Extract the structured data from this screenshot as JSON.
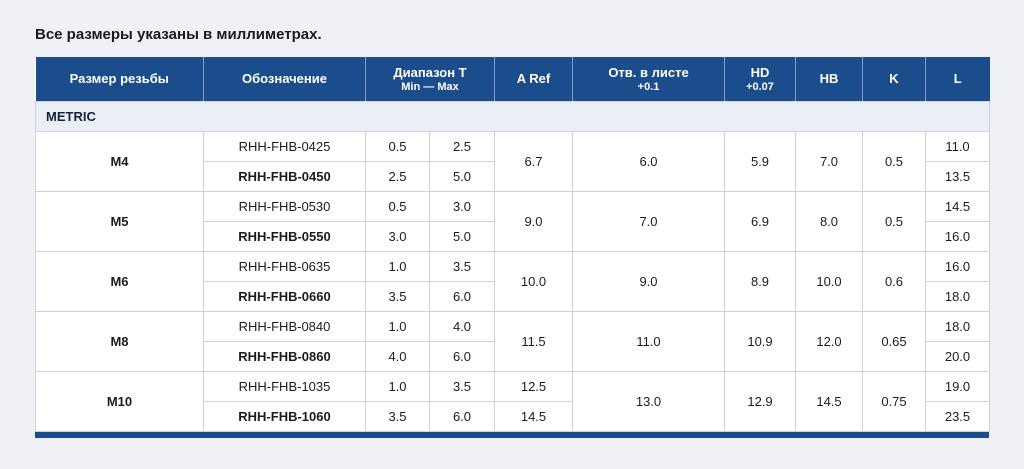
{
  "page": {
    "title": "Все размеры указаны в миллиметрах."
  },
  "colors": {
    "header_bg": "#1b4d8d",
    "section_bg": "#e9eef7",
    "page_bg": "#eff1f6",
    "border": "#ccd2da"
  },
  "table": {
    "headers": {
      "thread_size": "Размер резьбы",
      "designation": "Обозначение",
      "range_t": "Диапазон T",
      "range_t_sub": "Min — Max",
      "a_ref": "A Ref",
      "hole": "Отв. в листе",
      "hole_sub": "+0.1",
      "hd": "HD",
      "hd_sub": "+0.07",
      "hb": "HB",
      "k": "K",
      "l": "L"
    },
    "section": "METRIC",
    "groups": [
      {
        "size": "M4",
        "a_ref": "6.7",
        "hole": "6.0",
        "hd": "5.9",
        "hb": "7.0",
        "k": "0.5",
        "rows": [
          {
            "designation": "RHH-FHB-0425",
            "t_min": "0.5",
            "t_max": "2.5",
            "l": "11.0",
            "bold": false
          },
          {
            "designation": "RHH-FHB-0450",
            "t_min": "2.5",
            "t_max": "5.0",
            "l": "13.5",
            "bold": true
          }
        ]
      },
      {
        "size": "M5",
        "a_ref": "9.0",
        "hole": "7.0",
        "hd": "6.9",
        "hb": "8.0",
        "k": "0.5",
        "rows": [
          {
            "designation": "RHH-FHB-0530",
            "t_min": "0.5",
            "t_max": "3.0",
            "l": "14.5",
            "bold": false
          },
          {
            "designation": "RHH-FHB-0550",
            "t_min": "3.0",
            "t_max": "5.0",
            "l": "16.0",
            "bold": true
          }
        ]
      },
      {
        "size": "M6",
        "a_ref": "10.0",
        "hole": "9.0",
        "hd": "8.9",
        "hb": "10.0",
        "k": "0.6",
        "rows": [
          {
            "designation": "RHH-FHB-0635",
            "t_min": "1.0",
            "t_max": "3.5",
            "l": "16.0",
            "bold": false
          },
          {
            "designation": "RHH-FHB-0660",
            "t_min": "3.5",
            "t_max": "6.0",
            "l": "18.0",
            "bold": true
          }
        ]
      },
      {
        "size": "M8",
        "a_ref": "11.5",
        "hole": "11.0",
        "hd": "10.9",
        "hb": "12.0",
        "k": "0.65",
        "rows": [
          {
            "designation": "RHH-FHB-0840",
            "t_min": "1.0",
            "t_max": "4.0",
            "l": "18.0",
            "bold": false
          },
          {
            "designation": "RHH-FHB-0860",
            "t_min": "4.0",
            "t_max": "6.0",
            "l": "20.0",
            "bold": true
          }
        ]
      },
      {
        "size": "M10",
        "a_ref": null,
        "hole": "13.0",
        "hd": "12.9",
        "hb": "14.5",
        "k": "0.75",
        "rows": [
          {
            "designation": "RHH-FHB-1035",
            "t_min": "1.0",
            "t_max": "3.5",
            "a_ref": "12.5",
            "l": "19.0",
            "bold": false
          },
          {
            "designation": "RHH-FHB-1060",
            "t_min": "3.5",
            "t_max": "6.0",
            "a_ref": "14.5",
            "l": "23.5",
            "bold": true
          }
        ]
      }
    ]
  }
}
